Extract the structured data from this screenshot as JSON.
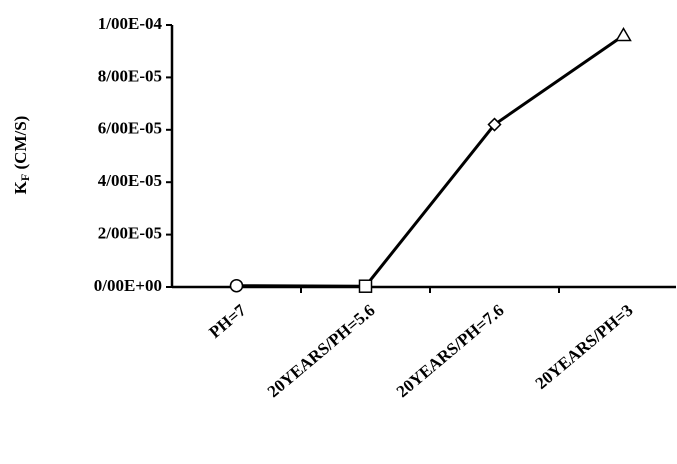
{
  "chart_data": {
    "type": "line",
    "ylabel_parts": [
      "K",
      "F",
      " (CM/S)"
    ],
    "categories": [
      "PH=7",
      "20YEARS/PH=5.6",
      "20YEARS/PH=7.6",
      "20YEARS/PH=3"
    ],
    "series": [
      {
        "color": "#000000",
        "values": [
          5e-07,
          3e-07,
          6.2e-05,
          9.6e-05
        ],
        "markers": [
          "circle",
          "square",
          "diamond",
          "triangle"
        ]
      }
    ],
    "ylim": [
      0,
      0.0001
    ],
    "yticks": [
      {
        "value": 0,
        "label": "0/00E+00"
      },
      {
        "value": 2e-05,
        "label": "2/00E-05"
      },
      {
        "value": 4e-05,
        "label": "4/00E-05"
      },
      {
        "value": 6e-05,
        "label": "6/00E-05"
      },
      {
        "value": 8e-05,
        "label": "8/00E-05"
      },
      {
        "value": 0.0001,
        "label": "1/00E-04"
      }
    ],
    "grid": false
  }
}
